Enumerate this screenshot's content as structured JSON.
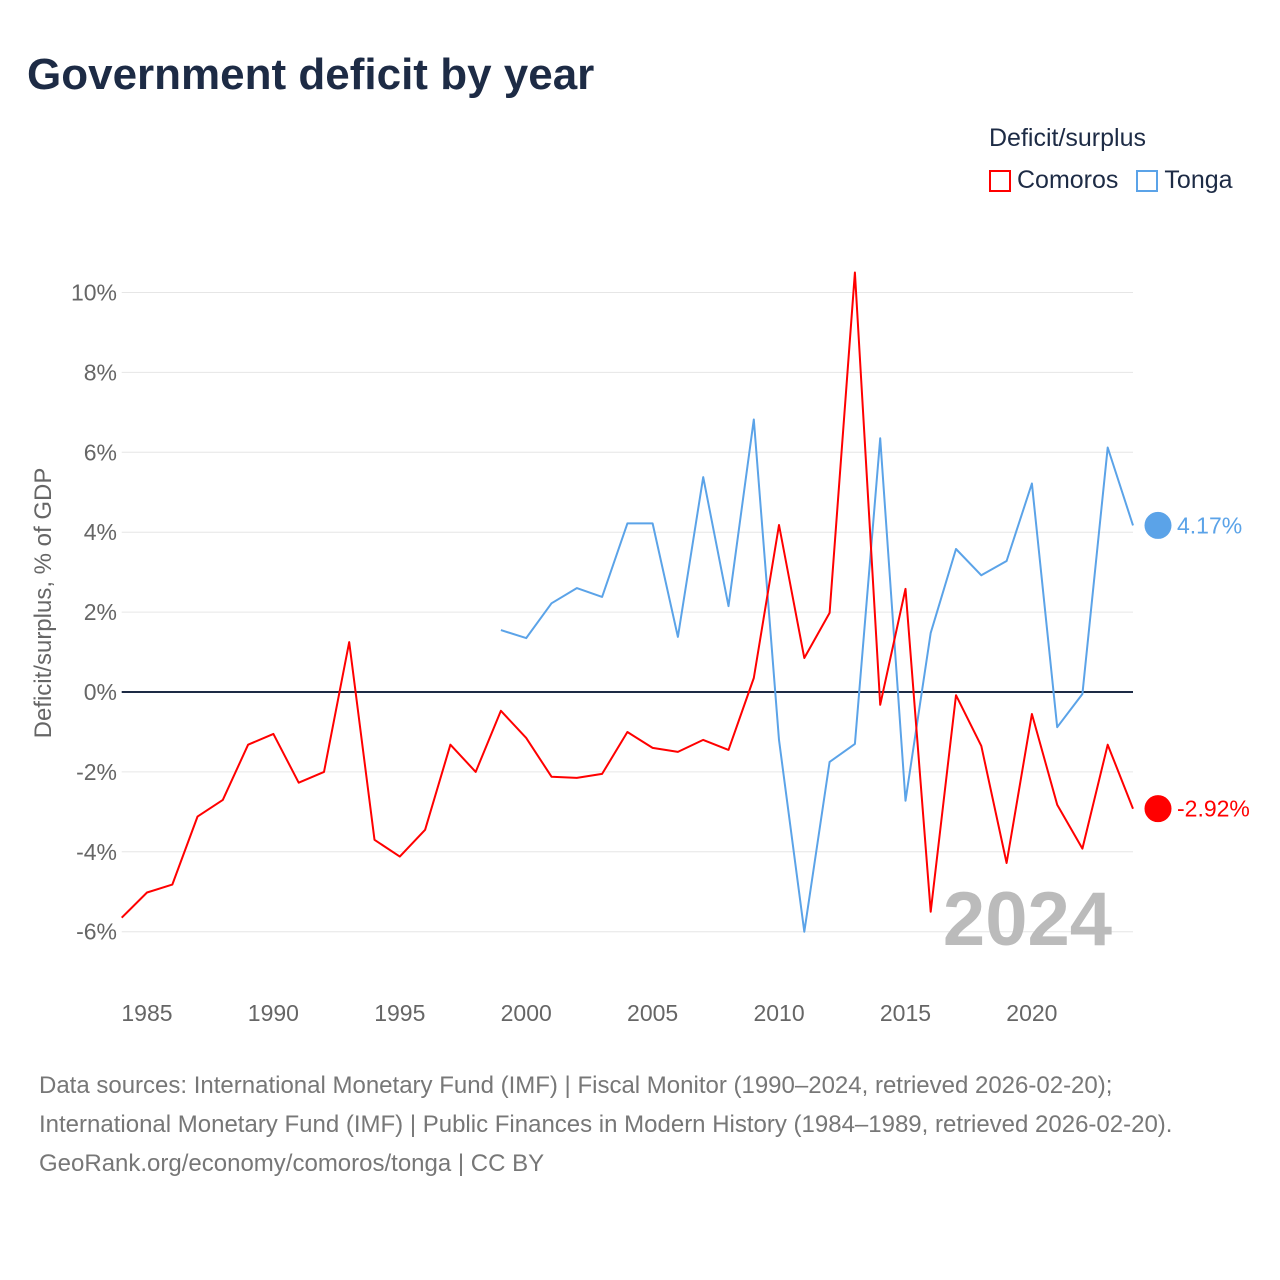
{
  "title": "Government deficit by year",
  "legend": {
    "title": "Deficit/surplus",
    "items": [
      {
        "label": "Comoros",
        "color": "#ff0000"
      },
      {
        "label": "Tonga",
        "color": "#5ba3e8"
      }
    ]
  },
  "footer": {
    "sources": "Data sources: International Monetary Fund (IMF) | Fiscal Monitor (1990–2024, retrieved 2026-02-20); International Monetary Fund (IMF) | Public Finances in Modern History (1984–1989, retrieved 2026-02-20).",
    "credit": "GeoRank.org/economy/comoros/tonga | CC BY"
  },
  "chart_data": {
    "type": "line",
    "title": "Government deficit by year",
    "xlabel": "",
    "ylabel": "Deficit/surplus, % of GDP",
    "xlim": [
      1984,
      2024
    ],
    "ylim": [
      -6,
      10
    ],
    "xticks": [
      1985,
      1990,
      1995,
      2000,
      2005,
      2010,
      2015,
      2020
    ],
    "yticks": [
      {
        "v": 10,
        "label": "10%"
      },
      {
        "v": 8,
        "label": "8%"
      },
      {
        "v": 6,
        "label": "6%"
      },
      {
        "v": 4,
        "label": "4%"
      },
      {
        "v": 2,
        "label": "2%"
      },
      {
        "v": 0,
        "label": "0%"
      },
      {
        "v": -2,
        "label": "-2%"
      },
      {
        "v": -4,
        "label": "-4%"
      },
      {
        "v": -6,
        "label": "-6%"
      }
    ],
    "year_watermark": "2024",
    "series": [
      {
        "name": "Comoros",
        "color": "#ff0000",
        "end_label": "-2.92%",
        "start": 1984,
        "values": [
          -5.65,
          -5.02,
          -4.82,
          -3.12,
          -2.7,
          -1.32,
          -1.05,
          -2.27,
          -2.0,
          1.25,
          -3.7,
          -4.12,
          -3.45,
          -1.32,
          -2.0,
          -0.47,
          -1.15,
          -2.12,
          -2.15,
          -2.05,
          -1.0,
          -1.4,
          -1.5,
          -1.2,
          -1.45,
          0.35,
          4.18,
          0.85,
          1.98,
          10.5,
          -0.32,
          2.58,
          -5.5,
          -0.08,
          -1.35,
          -4.28,
          -0.55,
          -2.82,
          -3.92,
          -1.32,
          -2.92
        ]
      },
      {
        "name": "Tonga",
        "color": "#5ba3e8",
        "end_label": "4.17%",
        "start": 1999,
        "values": [
          1.55,
          1.35,
          2.22,
          2.6,
          2.38,
          4.22,
          4.22,
          1.38,
          5.38,
          2.15,
          6.82,
          -1.2,
          -6.0,
          -1.75,
          -1.3,
          6.35,
          -2.72,
          1.48,
          3.58,
          2.92,
          3.28,
          5.22,
          -0.88,
          -0.05,
          6.12,
          4.17
        ]
      }
    ]
  }
}
